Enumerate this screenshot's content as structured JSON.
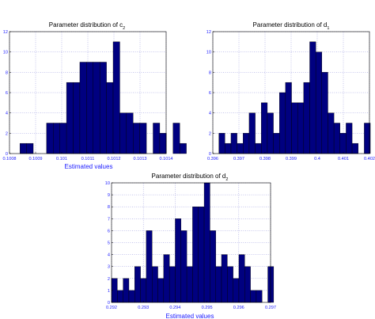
{
  "chart_data": [
    {
      "type": "bar",
      "title": "Parameter distribution of c",
      "title_sub": "2",
      "xlabel": "Estimated values",
      "ylabel": "",
      "xlim": [
        0.1008,
        0.1014
      ],
      "ylim": [
        0,
        12
      ],
      "xticks": [
        "0.1008",
        "0.1009",
        "0.101",
        "0.1011",
        "0.1012",
        "0.1013",
        "0.1014"
      ],
      "yticks": [
        "0",
        "2",
        "4",
        "6",
        "8",
        "10",
        "12"
      ],
      "bin_start": 0.10084,
      "bin_width": 2.55e-05,
      "values": [
        1,
        1,
        0,
        0,
        3,
        3,
        3,
        7,
        7,
        9,
        9,
        9,
        9,
        7,
        11,
        4,
        4,
        3,
        3,
        0,
        3,
        2,
        0,
        3,
        1
      ],
      "grid": true
    },
    {
      "type": "bar",
      "title": "Parameter distribution of d",
      "title_sub": "1",
      "xlabel": "",
      "ylabel": "",
      "xlim": [
        0.396,
        0.402
      ],
      "ylim": [
        0,
        12
      ],
      "xticks": [
        "0.396",
        "0.397",
        "0.398",
        "0.399",
        "0.4",
        "0.401",
        "0.402"
      ],
      "yticks": [
        "0",
        "2",
        "4",
        "6",
        "8",
        "10",
        "12"
      ],
      "bin_start": 0.396,
      "bin_width": 0.000232,
      "values": [
        0,
        2,
        1,
        2,
        1,
        2,
        4,
        1,
        5,
        4,
        2,
        6,
        7,
        5,
        5,
        7,
        11,
        10,
        8,
        4,
        3,
        2,
        3,
        1,
        0,
        3
      ],
      "grid": true
    },
    {
      "type": "bar",
      "title": "Parameter distribution of d",
      "title_sub": "2",
      "xlabel": "Estimated values",
      "ylabel": "",
      "xlim": [
        0.292,
        0.297
      ],
      "ylim": [
        0,
        10
      ],
      "xticks": [
        "0.292",
        "0.293",
        "0.294",
        "0.295",
        "0.296",
        "0.297"
      ],
      "yticks": [
        "0",
        "1",
        "2",
        "3",
        "4",
        "5",
        "6",
        "7",
        "8",
        "9",
        "10"
      ],
      "bin_start": 0.292,
      "bin_width": 0.000182,
      "values": [
        2,
        1,
        2,
        1,
        3,
        2,
        6,
        3,
        2,
        4,
        3,
        7,
        6,
        3,
        8,
        8,
        10,
        6,
        3,
        4,
        3,
        2,
        4,
        3,
        1,
        1,
        0,
        3
      ],
      "grid": true
    }
  ]
}
